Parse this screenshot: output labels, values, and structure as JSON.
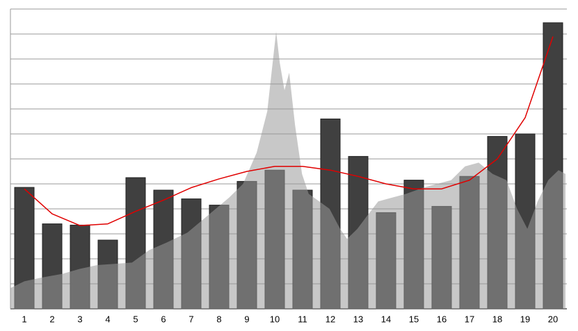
{
  "chart_data": {
    "type": "bar",
    "categories": [
      "1",
      "2",
      "3",
      "4",
      "5",
      "6",
      "7",
      "8",
      "9",
      "10",
      "11",
      "12",
      "13",
      "14",
      "15",
      "16",
      "17",
      "18",
      "19",
      "20"
    ],
    "xlim": [
      0.5,
      20.5
    ],
    "ylim": [
      0,
      12
    ],
    "yticks": [
      0,
      1,
      2,
      3,
      4,
      5,
      6,
      7,
      8,
      9,
      10,
      11,
      12
    ],
    "grid": true,
    "series": [
      {
        "type": "bar",
        "color": "#404040",
        "values": [
          4.86,
          3.4,
          3.35,
          2.75,
          5.25,
          4.75,
          4.4,
          4.15,
          5.1,
          5.55,
          4.75,
          7.6,
          6.1,
          3.85,
          5.15,
          4.1,
          5.3,
          6.9,
          7.0,
          11.45
        ]
      },
      {
        "type": "area",
        "color": "#999999",
        "x": [
          0.5,
          1,
          1.62,
          2.37,
          3.0,
          3.62,
          4.24,
          4.87,
          5.49,
          6.11,
          6.86,
          7.61,
          8.36,
          8.86,
          9.35,
          9.73,
          9.9,
          10.05,
          10.18,
          10.35,
          10.52,
          10.73,
          10.98,
          11.22,
          11.6,
          11.97,
          12.35,
          12.6,
          12.97,
          13.34,
          13.72,
          14.22,
          14.72,
          15.34,
          15.84,
          16.34,
          16.84,
          17.33,
          17.83,
          18.33,
          18.71,
          19.08,
          19.45,
          19.83,
          20.2,
          20.45
        ],
        "values": [
          0.83,
          1.1,
          1.25,
          1.4,
          1.6,
          1.75,
          1.8,
          1.85,
          2.35,
          2.65,
          3.05,
          3.75,
          4.45,
          5.0,
          6.25,
          7.9,
          9.6,
          11.1,
          9.85,
          8.75,
          9.45,
          7.35,
          5.4,
          4.6,
          4.3,
          4.0,
          3.2,
          2.8,
          3.2,
          3.75,
          4.3,
          4.45,
          4.6,
          4.85,
          5.0,
          5.15,
          5.7,
          5.85,
          5.4,
          5.15,
          4.0,
          3.2,
          4.3,
          5.15,
          5.55,
          5.4
        ]
      },
      {
        "type": "line",
        "color": "#e00000",
        "values": [
          4.8,
          3.8,
          3.33,
          3.4,
          3.9,
          4.35,
          4.85,
          5.2,
          5.5,
          5.7,
          5.7,
          5.55,
          5.3,
          5.0,
          4.8,
          4.8,
          5.15,
          6.0,
          7.65,
          10.9
        ]
      }
    ]
  }
}
